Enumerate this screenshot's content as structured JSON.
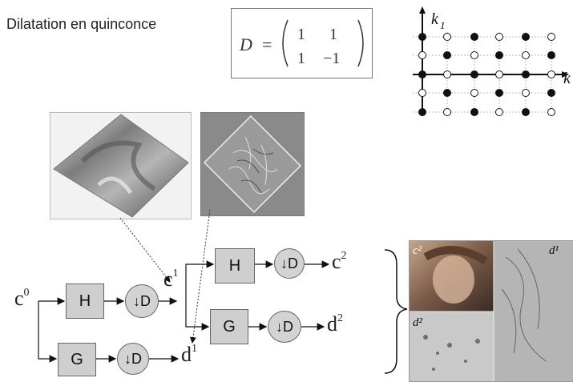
{
  "title": "Dilatation en quinconce",
  "matrix": {
    "lhs": "D",
    "eq": "=",
    "r1c1": "1",
    "r1c2": "1",
    "r2c1": "1",
    "r2c2": "−1"
  },
  "lattice": {
    "k1_label": "k",
    "k1_sub": "1",
    "k2_label": "k"
  },
  "blocks": {
    "H": "H",
    "G": "G",
    "down": "↓D"
  },
  "signals": {
    "c0_base": "c",
    "c0_sup": "0",
    "c1_base": "c",
    "c1_sup": "1",
    "c2_base": "c",
    "c2_sup": "2",
    "d1_base": "d",
    "d1_sup": "1",
    "d2_base": "d",
    "d2_sup": "2"
  },
  "lena_labels": {
    "c2": "c²",
    "d1": "d¹",
    "d2": "d²"
  }
}
